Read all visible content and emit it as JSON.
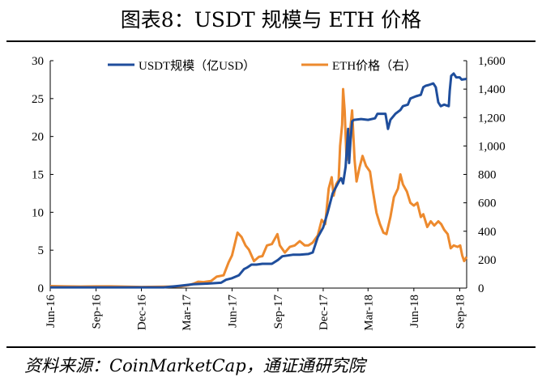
{
  "figure": {
    "title": "图表8：USDT 规模与 ETH 价格",
    "source": "资料来源：CoinMarketCap，通证通研究院"
  },
  "colors": {
    "usdt": "#1f4e9c",
    "eth": "#ed8a2e",
    "axis": "#000000"
  },
  "chart_data": {
    "type": "line",
    "title": "图表8：USDT 规模与 ETH 价格",
    "x_start": "2016-06-01",
    "x_end": "2018-09-15",
    "x_ticks": [
      "Jun-16",
      "Sep-16",
      "Dec-16",
      "Mar-17",
      "Jun-17",
      "Sep-17",
      "Dec-17",
      "Mar-18",
      "Jun-18",
      "Sep-18"
    ],
    "x_tick_dates": [
      "2016-06-01",
      "2016-09-01",
      "2016-12-01",
      "2017-03-01",
      "2017-06-01",
      "2017-09-01",
      "2017-12-01",
      "2018-03-01",
      "2018-06-01",
      "2018-09-01"
    ],
    "y_left": {
      "min": 0,
      "max": 30,
      "ticks": [
        "0",
        "5",
        "10",
        "15",
        "20",
        "25",
        "30"
      ]
    },
    "y_right": {
      "min": 0,
      "max": 1600,
      "ticks": [
        "0",
        "200",
        "400",
        "600",
        "800",
        "1,000",
        "1,200",
        "1,400",
        "1,600"
      ]
    },
    "legend_position": "top",
    "grid": false,
    "series": [
      {
        "name": "USDT规模（亿USD）",
        "axis": "left",
        "points": [
          [
            "2016-06-01",
            0.1
          ],
          [
            "2016-08-01",
            0.1
          ],
          [
            "2016-10-01",
            0.1
          ],
          [
            "2016-12-01",
            0.1
          ],
          [
            "2017-01-15",
            0.1
          ],
          [
            "2017-02-15",
            0.3
          ],
          [
            "2017-03-15",
            0.5
          ],
          [
            "2017-04-15",
            0.6
          ],
          [
            "2017-05-10",
            0.7
          ],
          [
            "2017-05-20",
            1.1
          ],
          [
            "2017-06-01",
            1.3
          ],
          [
            "2017-06-15",
            1.7
          ],
          [
            "2017-06-25",
            2.5
          ],
          [
            "2017-07-01",
            2.7
          ],
          [
            "2017-07-10",
            3.1
          ],
          [
            "2017-07-20",
            3.1
          ],
          [
            "2017-08-01",
            3.2
          ],
          [
            "2017-08-20",
            3.2
          ],
          [
            "2017-09-01",
            3.7
          ],
          [
            "2017-09-10",
            4.2
          ],
          [
            "2017-10-01",
            4.4
          ],
          [
            "2017-10-15",
            4.4
          ],
          [
            "2017-11-01",
            4.5
          ],
          [
            "2017-11-10",
            4.7
          ],
          [
            "2017-11-20",
            6.7
          ],
          [
            "2017-12-01",
            8.0
          ],
          [
            "2017-12-10",
            10.0
          ],
          [
            "2017-12-20",
            12.5
          ],
          [
            "2018-01-01",
            14.0
          ],
          [
            "2018-01-06",
            14.5
          ],
          [
            "2018-01-10",
            13.8
          ],
          [
            "2018-01-15",
            16.0
          ],
          [
            "2018-01-20",
            21.0
          ],
          [
            "2018-01-22",
            16.5
          ],
          [
            "2018-01-25",
            19.5
          ],
          [
            "2018-01-28",
            22.0
          ],
          [
            "2018-02-01",
            22.2
          ],
          [
            "2018-02-15",
            22.3
          ],
          [
            "2018-03-01",
            22.2
          ],
          [
            "2018-03-15",
            22.4
          ],
          [
            "2018-03-20",
            23.0
          ],
          [
            "2018-04-05",
            23.0
          ],
          [
            "2018-04-10",
            21.0
          ],
          [
            "2018-04-15",
            22.2
          ],
          [
            "2018-04-25",
            23.0
          ],
          [
            "2018-05-05",
            23.5
          ],
          [
            "2018-05-10",
            24.0
          ],
          [
            "2018-05-20",
            24.2
          ],
          [
            "2018-05-25",
            25.0
          ],
          [
            "2018-06-05",
            25.3
          ],
          [
            "2018-06-15",
            25.5
          ],
          [
            "2018-06-20",
            26.5
          ],
          [
            "2018-06-25",
            26.7
          ],
          [
            "2018-07-01",
            26.8
          ],
          [
            "2018-07-10",
            27.0
          ],
          [
            "2018-07-15",
            26.5
          ],
          [
            "2018-07-20",
            24.5
          ],
          [
            "2018-07-25",
            24.0
          ],
          [
            "2018-08-01",
            24.2
          ],
          [
            "2018-08-10",
            24.0
          ],
          [
            "2018-08-12",
            26.0
          ],
          [
            "2018-08-15",
            28.0
          ],
          [
            "2018-08-20",
            28.3
          ],
          [
            "2018-08-25",
            27.8
          ],
          [
            "2018-09-01",
            27.8
          ],
          [
            "2018-09-05",
            27.5
          ],
          [
            "2018-09-15",
            27.6
          ]
        ]
      },
      {
        "name": "ETH价格（右）",
        "axis": "right",
        "points": [
          [
            "2016-06-01",
            14
          ],
          [
            "2016-07-01",
            12
          ],
          [
            "2016-08-01",
            11
          ],
          [
            "2016-09-01",
            12
          ],
          [
            "2016-10-01",
            12
          ],
          [
            "2016-11-01",
            10
          ],
          [
            "2016-12-01",
            8
          ],
          [
            "2017-01-01",
            9
          ],
          [
            "2017-02-01",
            11
          ],
          [
            "2017-02-20",
            13
          ],
          [
            "2017-03-05",
            20
          ],
          [
            "2017-03-15",
            30
          ],
          [
            "2017-03-25",
            45
          ],
          [
            "2017-04-05",
            42
          ],
          [
            "2017-04-20",
            50
          ],
          [
            "2017-05-01",
            80
          ],
          [
            "2017-05-15",
            90
          ],
          [
            "2017-05-25",
            180
          ],
          [
            "2017-06-01",
            230
          ],
          [
            "2017-06-12",
            390
          ],
          [
            "2017-06-20",
            360
          ],
          [
            "2017-06-28",
            300
          ],
          [
            "2017-07-05",
            270
          ],
          [
            "2017-07-15",
            190
          ],
          [
            "2017-07-25",
            220
          ],
          [
            "2017-08-01",
            225
          ],
          [
            "2017-08-10",
            300
          ],
          [
            "2017-08-20",
            310
          ],
          [
            "2017-08-31",
            380
          ],
          [
            "2017-09-05",
            300
          ],
          [
            "2017-09-15",
            250
          ],
          [
            "2017-09-25",
            290
          ],
          [
            "2017-10-05",
            300
          ],
          [
            "2017-10-15",
            330
          ],
          [
            "2017-10-25",
            300
          ],
          [
            "2017-11-01",
            300
          ],
          [
            "2017-11-10",
            320
          ],
          [
            "2017-11-20",
            370
          ],
          [
            "2017-11-28",
            480
          ],
          [
            "2017-12-05",
            450
          ],
          [
            "2017-12-12",
            700
          ],
          [
            "2017-12-18",
            780
          ],
          [
            "2017-12-22",
            650
          ],
          [
            "2017-12-27",
            730
          ],
          [
            "2018-01-01",
            760
          ],
          [
            "2018-01-04",
            1000
          ],
          [
            "2018-01-08",
            1150
          ],
          [
            "2018-01-10",
            1400
          ],
          [
            "2018-01-13",
            1250
          ],
          [
            "2018-01-17",
            900
          ],
          [
            "2018-01-20",
            1000
          ],
          [
            "2018-01-24",
            1100
          ],
          [
            "2018-01-28",
            1250
          ],
          [
            "2018-02-02",
            900
          ],
          [
            "2018-02-06",
            750
          ],
          [
            "2018-02-12",
            850
          ],
          [
            "2018-02-18",
            930
          ],
          [
            "2018-02-25",
            860
          ],
          [
            "2018-03-05",
            820
          ],
          [
            "2018-03-10",
            700
          ],
          [
            "2018-03-18",
            530
          ],
          [
            "2018-03-25",
            450
          ],
          [
            "2018-04-01",
            390
          ],
          [
            "2018-04-07",
            380
          ],
          [
            "2018-04-15",
            500
          ],
          [
            "2018-04-22",
            640
          ],
          [
            "2018-04-30",
            700
          ],
          [
            "2018-05-05",
            800
          ],
          [
            "2018-05-10",
            730
          ],
          [
            "2018-05-18",
            680
          ],
          [
            "2018-05-25",
            600
          ],
          [
            "2018-06-01",
            580
          ],
          [
            "2018-06-08",
            600
          ],
          [
            "2018-06-15",
            500
          ],
          [
            "2018-06-20",
            520
          ],
          [
            "2018-06-28",
            430
          ],
          [
            "2018-07-05",
            470
          ],
          [
            "2018-07-12",
            440
          ],
          [
            "2018-07-20",
            470
          ],
          [
            "2018-07-26",
            450
          ],
          [
            "2018-08-01",
            410
          ],
          [
            "2018-08-08",
            380
          ],
          [
            "2018-08-14",
            280
          ],
          [
            "2018-08-20",
            300
          ],
          [
            "2018-08-28",
            290
          ],
          [
            "2018-09-02",
            300
          ],
          [
            "2018-09-06",
            230
          ],
          [
            "2018-09-10",
            190
          ],
          [
            "2018-09-15",
            220
          ]
        ]
      }
    ]
  }
}
